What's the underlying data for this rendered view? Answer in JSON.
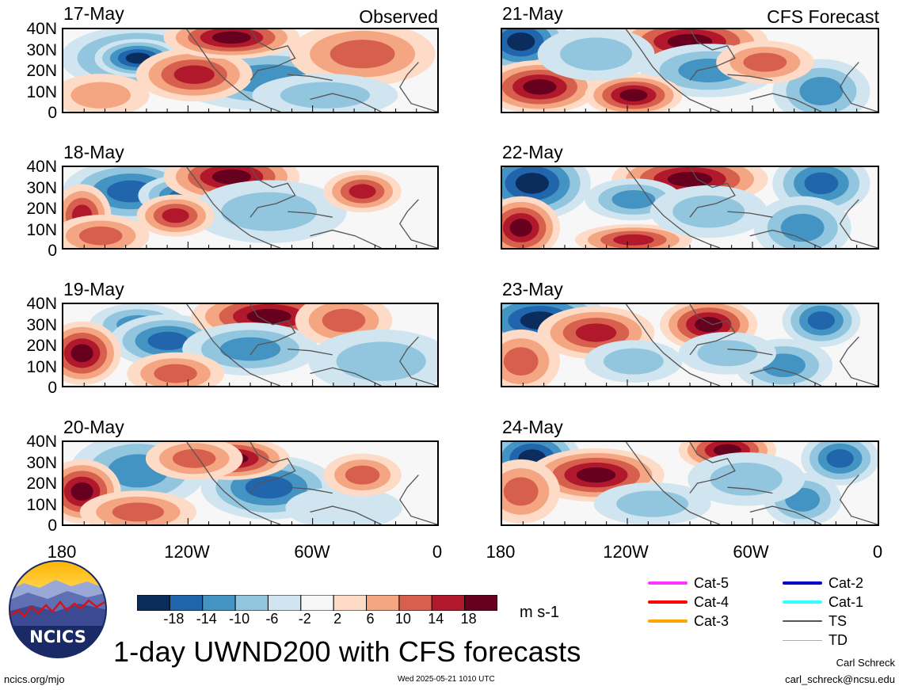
{
  "header": {
    "observed_label": "Observed",
    "forecast_label": "CFS Forecast"
  },
  "y_ticks": [
    "40N",
    "30N",
    "20N",
    "10N",
    "0"
  ],
  "x_ticks": [
    "180",
    "120W",
    "60W",
    "0"
  ],
  "panels": [
    {
      "date": "17-May",
      "column": "observed"
    },
    {
      "date": "18-May",
      "column": "observed"
    },
    {
      "date": "19-May",
      "column": "observed"
    },
    {
      "date": "20-May",
      "column": "observed"
    },
    {
      "date": "21-May",
      "column": "forecast"
    },
    {
      "date": "22-May",
      "column": "forecast"
    },
    {
      "date": "23-May",
      "column": "forecast"
    },
    {
      "date": "24-May",
      "column": "forecast"
    }
  ],
  "colorbar": {
    "labels": [
      "-18",
      "-14",
      "-10",
      "-6",
      "-2",
      "2",
      "6",
      "10",
      "14",
      "18"
    ],
    "colors": [
      "#0b2d5e",
      "#2166ac",
      "#4393c3",
      "#92c5de",
      "#d1e5f0",
      "#f7f7f7",
      "#fddbc7",
      "#f4a582",
      "#d6604d",
      "#b2182b",
      "#67001f"
    ],
    "units": "m s-1"
  },
  "title": "1-day UWND200 with CFS forecasts",
  "storm_legend": [
    {
      "label": "Cat-5",
      "color": "#ff33ff"
    },
    {
      "label": "Cat-4",
      "color": "#ff0000"
    },
    {
      "label": "Cat-3",
      "color": "#ffa500"
    },
    {
      "label": "Cat-2",
      "color": "#0000cc"
    },
    {
      "label": "Cat-1",
      "color": "#33ffff"
    },
    {
      "label": "TS",
      "color": "#555555"
    },
    {
      "label": "TD",
      "color": "#aaaaaa"
    }
  ],
  "logo": {
    "text": "NCICS"
  },
  "footer": {
    "url": "ncics.org/mjo",
    "timestamp": "Wed 2025-05-21 1010 UTC",
    "author": "Carl Schreck",
    "email": "carl_schreck@ncsu.edu"
  }
}
